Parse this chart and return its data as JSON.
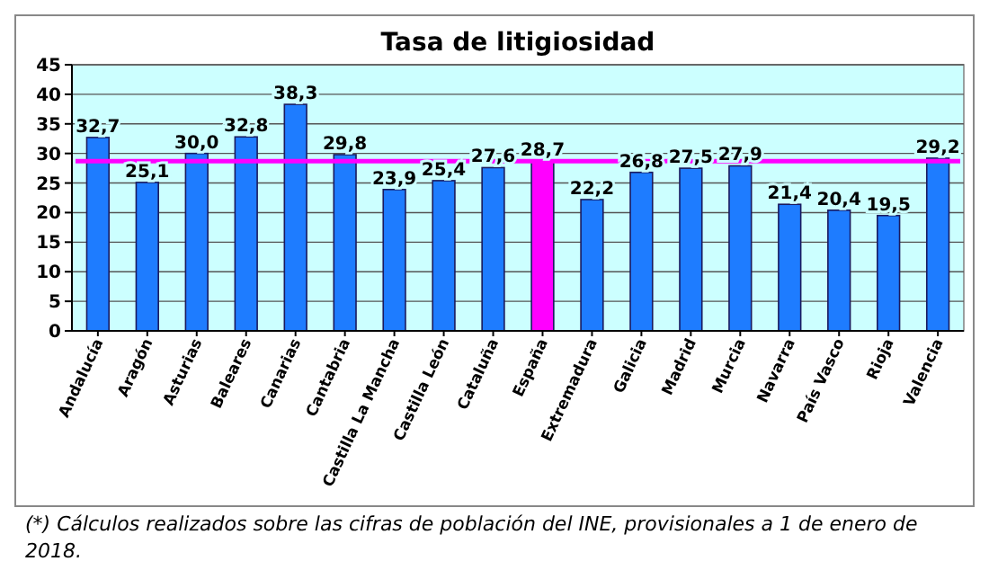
{
  "chart_data": {
    "type": "bar",
    "title": "Tasa de litigiosidad",
    "categories": [
      "Andalucía",
      "Aragón",
      "Asturias",
      "Baleares",
      "Canarias",
      "Cantabria",
      "Castilla La Mancha",
      "Castilla León",
      "Cataluña",
      "España",
      "Extremadura",
      "Galicia",
      "Madrid",
      "Murcia",
      "Navarra",
      "País Vasco",
      "Rioja",
      "Valencia"
    ],
    "values": [
      32.7,
      25.1,
      30.0,
      32.8,
      38.3,
      29.8,
      23.9,
      25.4,
      27.6,
      28.7,
      22.2,
      26.8,
      27.5,
      27.9,
      21.4,
      20.4,
      19.5,
      29.2
    ],
    "value_labels": [
      "32,7",
      "25,1",
      "30,0",
      "32,8",
      "38,3",
      "29,8",
      "23,9",
      "25,4",
      "27,6",
      "28,7",
      "22,2",
      "26,8",
      "27,5",
      "27,9",
      "21,4",
      "20,4",
      "19,5",
      "29,2"
    ],
    "colors": [
      "#1e7cff",
      "#1e7cff",
      "#1e7cff",
      "#1e7cff",
      "#1e7cff",
      "#1e7cff",
      "#1e7cff",
      "#1e7cff",
      "#1e7cff",
      "#ff00ff",
      "#1e7cff",
      "#1e7cff",
      "#1e7cff",
      "#1e7cff",
      "#1e7cff",
      "#1e7cff",
      "#1e7cff",
      "#1e7cff"
    ],
    "ylim": [
      0,
      45
    ],
    "yticks": [
      0,
      5,
      10,
      15,
      20,
      25,
      30,
      35,
      40,
      45
    ],
    "grid": "y",
    "ref_lines": [
      {
        "axis": "y",
        "value": 28.7,
        "color": "#ff00ff"
      }
    ],
    "annotations": [
      "(*) Cálculos realizados sobre las cifras de población del INE, provisionales a 1 de enero de 2018."
    ]
  }
}
